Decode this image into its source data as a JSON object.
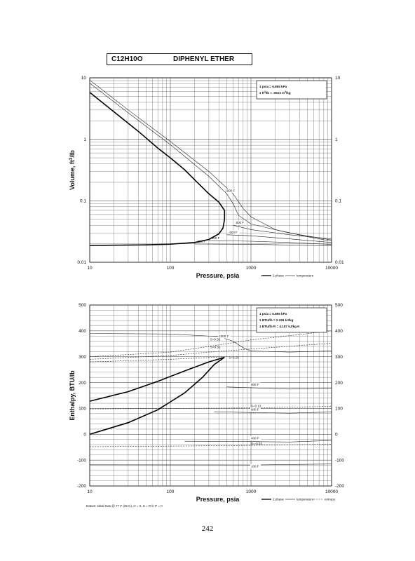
{
  "title": {
    "formula": "C12H10O",
    "name": "DIPHENYL ETHER"
  },
  "page_number": "242",
  "chart_data": [
    {
      "type": "line",
      "x_scale": "log",
      "y_scale": "log",
      "xlim": [
        10,
        10000
      ],
      "ylim": [
        0.01,
        10
      ],
      "xlabel": "Pressure,  psia",
      "ylabel": "Volume, ft^3/lb",
      "x_ticks": [
        "10",
        "100",
        "1000",
        "10000"
      ],
      "y_ticks": [
        "0.01",
        "0.1",
        "1",
        "10"
      ],
      "grid": true,
      "conversion_box": [
        "1 psia  =  6.895 kPa",
        "1 ft^3/lb  =  .0624 m^3/kg"
      ],
      "legend": [
        "2 phase",
        "temperature"
      ],
      "legend_position": "bottom-right",
      "two_phase": {
        "vapor": [
          [
            10,
            5.8
          ],
          [
            20,
            2.8
          ],
          [
            40,
            1.35
          ],
          [
            70,
            0.72
          ],
          [
            100,
            0.5
          ],
          [
            150,
            0.32
          ],
          [
            200,
            0.22
          ],
          [
            300,
            0.13
          ],
          [
            400,
            0.095
          ],
          [
            470,
            0.07
          ]
        ],
        "liquid": [
          [
            10,
            0.0188
          ],
          [
            50,
            0.0192
          ],
          [
            100,
            0.0197
          ],
          [
            200,
            0.021
          ],
          [
            300,
            0.0235
          ],
          [
            400,
            0.029
          ],
          [
            450,
            0.036
          ],
          [
            470,
            0.05
          ],
          [
            470,
            0.07
          ]
        ]
      },
      "series": [
        {
          "name": "1000 F",
          "points": [
            [
              10,
              9.2
            ],
            [
              30,
              3.0
            ],
            [
              100,
              0.92
            ],
            [
              300,
              0.3
            ],
            [
              600,
              0.13
            ],
            [
              800,
              0.075
            ],
            [
              1000,
              0.055
            ],
            [
              2000,
              0.034
            ],
            [
              5000,
              0.026
            ],
            [
              10000,
              0.022
            ]
          ]
        },
        {
          "name": "",
          "points": [
            [
              10,
              8.2
            ],
            [
              30,
              2.7
            ],
            [
              100,
              0.82
            ],
            [
              300,
              0.25
            ],
            [
              500,
              0.13
            ],
            [
              600,
              0.09
            ],
            [
              700,
              0.058
            ],
            [
              1000,
              0.042
            ],
            [
              3000,
              0.03
            ],
            [
              10000,
              0.023
            ]
          ]
        },
        {
          "name": "800 F",
          "points": [
            [
              600,
              0.04
            ],
            [
              1000,
              0.034
            ],
            [
              3000,
              0.028
            ],
            [
              10000,
              0.024
            ]
          ]
        },
        {
          "name": "600 F",
          "points": [
            [
              500,
              0.028
            ],
            [
              1000,
              0.027
            ],
            [
              3000,
              0.024
            ],
            [
              10000,
              0.021
            ]
          ]
        },
        {
          "name": "400 F",
          "points": [
            [
              300,
              0.0225
            ],
            [
              1000,
              0.022
            ],
            [
              3000,
              0.021
            ],
            [
              10000,
              0.0195
            ]
          ]
        },
        {
          "name": "200 F",
          "points": [
            [
              200,
              0.0198
            ],
            [
              1000,
              0.0196
            ],
            [
              10000,
              0.0185
            ]
          ]
        }
      ]
    },
    {
      "type": "line",
      "x_scale": "log",
      "y_scale": "linear",
      "xlim": [
        10,
        10000
      ],
      "ylim": [
        -200,
        500
      ],
      "xlabel": "Pressure,  psia",
      "ylabel": "Enthalpy, BTU/lb",
      "x_ticks": [
        "10",
        "100",
        "1000",
        "10000"
      ],
      "y_ticks": [
        "-200",
        "-100",
        "0",
        "100",
        "200",
        "300",
        "400",
        "500"
      ],
      "grid": true,
      "conversion_box": [
        "1 psia  =  6.895 kPa",
        "1 BTU/lb  =  2.326 kJ/kg",
        "1 BTU/lb R  =  4.187 kJ/kg K"
      ],
      "legend": [
        "2 phase",
        "temperature",
        "entropy"
      ],
      "legend_position": "bottom-right",
      "footnote": "Datum: Ideal Gas @ 77 F (25 C),  H = 0,  S = R ln P = 0",
      "two_phase": {
        "upper": [
          [
            10,
            128
          ],
          [
            30,
            165
          ],
          [
            70,
            205
          ],
          [
            150,
            245
          ],
          [
            300,
            280
          ],
          [
            470,
            298
          ]
        ],
        "lower": [
          [
            10,
            0
          ],
          [
            30,
            45
          ],
          [
            70,
            95
          ],
          [
            150,
            160
          ],
          [
            250,
            220
          ],
          [
            350,
            270
          ],
          [
            470,
            298
          ]
        ]
      },
      "series": [
        {
          "name": "1000 F",
          "points": [
            [
              10,
              390
            ],
            [
              100,
              388
            ],
            [
              400,
              378
            ],
            [
              600,
              360
            ],
            [
              800,
              335
            ],
            [
              1000,
              322
            ],
            [
              3000,
              318
            ],
            [
              10000,
              322
            ]
          ]
        },
        {
          "name": "800 F",
          "points": [
            [
              500,
              183
            ],
            [
              1000,
              180
            ],
            [
              3000,
              175
            ],
            [
              10000,
              178
            ]
          ]
        },
        {
          "name": "600 F",
          "points": [
            [
              350,
              87
            ],
            [
              1000,
              84
            ],
            [
              3000,
              82
            ],
            [
              10000,
              86
            ]
          ]
        },
        {
          "name": "400 F",
          "points": [
            [
              150,
              -27
            ],
            [
              1000,
              -28
            ],
            [
              3000,
              -30
            ],
            [
              10000,
              -24
            ]
          ]
        },
        {
          "name": "100 F",
          "points": [
            [
              10,
              -118
            ],
            [
              1000,
              -119
            ],
            [
              10000,
              -115
            ]
          ]
        }
      ],
      "entropy_lines": [
        {
          "name": "S=0.33",
          "points": [
            [
              10,
              300
            ],
            [
              100,
              318
            ],
            [
              300,
              340
            ],
            [
              1000,
              365
            ],
            [
              10000,
              400
            ]
          ]
        },
        {
          "name": "S=0.31",
          "points": [
            [
              10,
              290
            ],
            [
              100,
              305
            ],
            [
              300,
              318
            ],
            [
              1000,
              330
            ],
            [
              10000,
              352
            ]
          ]
        },
        {
          "name": "S=0.29",
          "points": [
            [
              10,
              280
            ],
            [
              100,
              290
            ],
            [
              300,
              297
            ],
            [
              500,
              300
            ]
          ]
        },
        {
          "name": "S=0.13",
          "points": [
            [
              10,
              98
            ],
            [
              100,
              100
            ],
            [
              1000,
              102
            ],
            [
              10000,
              108
            ]
          ]
        },
        {
          "name": "S=-0.03",
          "points": [
            [
              10,
              -48
            ],
            [
              100,
              -46
            ],
            [
              1000,
              -43
            ],
            [
              10000,
              -38
            ]
          ]
        }
      ]
    }
  ]
}
